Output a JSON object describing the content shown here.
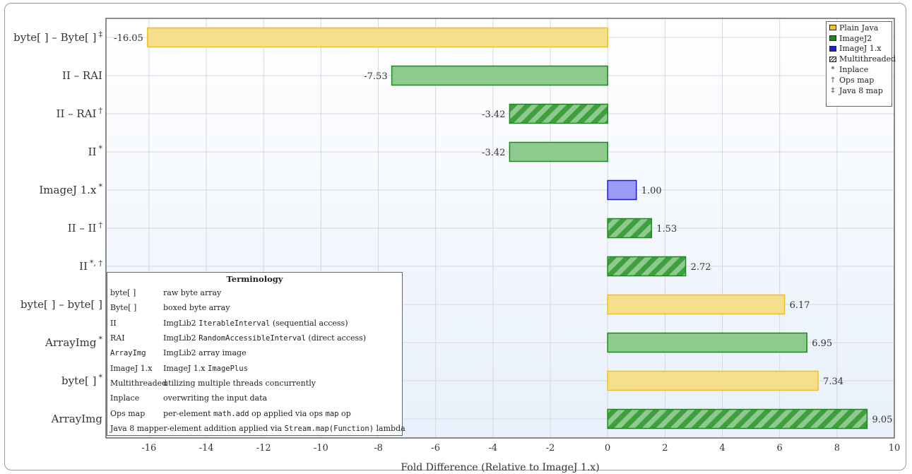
{
  "chart_data": {
    "type": "bar",
    "orientation": "horizontal",
    "xlabel": "Fold Difference (Relative to ImageJ 1.x)",
    "xlim": [
      -17.5,
      10
    ],
    "xticks": [
      -16,
      -14,
      -12,
      -10,
      -8,
      -6,
      -4,
      -2,
      0,
      2,
      4,
      6,
      8,
      10
    ],
    "grid": true,
    "legend_position": "top-right",
    "bars": [
      {
        "label": "byte[ ] – Byte[ ]",
        "sup": "‡",
        "value": -16.05,
        "value_label": "-16.05",
        "category": "Plain Java",
        "hatched": false
      },
      {
        "label": "II – RAI",
        "sup": "",
        "value": -7.53,
        "value_label": "-7.53",
        "category": "ImageJ2",
        "hatched": false
      },
      {
        "label": "II – RAI",
        "sup": "†",
        "value": -3.42,
        "value_label": "-3.42",
        "category": "ImageJ2",
        "hatched": true
      },
      {
        "label": "II",
        "sup": "*",
        "value": -3.42,
        "value_label": "-3.42",
        "category": "ImageJ2",
        "hatched": false
      },
      {
        "label": "ImageJ 1.x",
        "sup": "*",
        "value": 1.0,
        "value_label": "1.00",
        "category": "ImageJ 1.x",
        "hatched": false
      },
      {
        "label": "II – II",
        "sup": "†",
        "value": 1.53,
        "value_label": "1.53",
        "category": "ImageJ2",
        "hatched": true
      },
      {
        "label": "II",
        "sup": "*, †",
        "value": 2.72,
        "value_label": "2.72",
        "category": "ImageJ2",
        "hatched": true
      },
      {
        "label": "byte[ ] – byte[ ]",
        "sup": "",
        "value": 6.17,
        "value_label": "6.17",
        "category": "Plain Java",
        "hatched": false
      },
      {
        "label": "ArrayImg",
        "sup": "*",
        "value": 6.95,
        "value_label": "6.95",
        "category": "ImageJ2",
        "hatched": false
      },
      {
        "label": "byte[ ]",
        "sup": "*",
        "value": 7.34,
        "value_label": "7.34",
        "category": "Plain Java",
        "hatched": false
      },
      {
        "label": "ArrayImg",
        "sup": "",
        "value": 9.05,
        "value_label": "9.05",
        "category": "ImageJ2",
        "hatched": true
      }
    ],
    "colors": {
      "Plain Java": {
        "fill": "#f5de8c",
        "stroke": "#f0c020",
        "swatch": "#f2c318"
      },
      "ImageJ2": {
        "fill": "#8ec98e",
        "stroke": "#1a8a1a",
        "swatch": "#1e8b1e"
      },
      "ImageJ 1.x": {
        "fill": "#9b9bf7",
        "stroke": "#1a1ad6",
        "swatch": "#1e1ee0"
      }
    },
    "legend": {
      "swatches": [
        {
          "label": "Plain Java",
          "key": "Plain Java"
        },
        {
          "label": "ImageJ2",
          "key": "ImageJ2"
        },
        {
          "label": "ImageJ 1.x",
          "key": "ImageJ 1.x"
        },
        {
          "label": "Multithreaded",
          "key": "hatched"
        }
      ],
      "symbols": [
        {
          "symbol": "*",
          "label": "Inplace"
        },
        {
          "symbol": "†",
          "label": "Ops map"
        },
        {
          "symbol": "‡",
          "label": "Java 8 map"
        }
      ]
    }
  },
  "terminology": {
    "title": "Terminology",
    "rows": [
      {
        "term": "byte[ ]",
        "term_mono": false,
        "def": [
          {
            "t": "raw byte array",
            "m": false
          }
        ]
      },
      {
        "term": "Byte[ ]",
        "term_mono": false,
        "def": [
          {
            "t": "boxed byte array",
            "m": false
          }
        ]
      },
      {
        "term": "II",
        "term_mono": false,
        "def": [
          {
            "t": "ImgLib2 ",
            "m": false
          },
          {
            "t": "IterableInterval",
            "m": true
          },
          {
            "t": " (sequential access)",
            "m": false
          }
        ]
      },
      {
        "term": "RAI",
        "term_mono": false,
        "def": [
          {
            "t": "ImgLib2 ",
            "m": false
          },
          {
            "t": "RandomAccessibleInterval",
            "m": true
          },
          {
            "t": " (direct access)",
            "m": false
          }
        ]
      },
      {
        "term": "ArrayImg",
        "term_mono": true,
        "def": [
          {
            "t": "ImgLib2 array image",
            "m": false
          }
        ]
      },
      {
        "term": "ImageJ 1.x",
        "term_mono": false,
        "def": [
          {
            "t": "ImageJ 1.x ",
            "m": false
          },
          {
            "t": "ImagePlus",
            "m": true
          }
        ]
      },
      {
        "term": "Multithreaded",
        "term_mono": false,
        "def": [
          {
            "t": "utilizing multiple threads concurrently",
            "m": false
          }
        ]
      },
      {
        "term": "Inplace",
        "term_mono": false,
        "def": [
          {
            "t": "overwriting the input data",
            "m": false
          }
        ]
      },
      {
        "term": "Ops map",
        "term_mono": false,
        "def": [
          {
            "t": "per-element ",
            "m": false
          },
          {
            "t": "math.add",
            "m": true
          },
          {
            "t": " op applied via ops ",
            "m": false
          },
          {
            "t": "map",
            "m": true
          },
          {
            "t": " op",
            "m": false
          }
        ]
      },
      {
        "term": "Java 8 map",
        "term_mono": false,
        "def": [
          {
            "t": "per-element addition applied via ",
            "m": false
          },
          {
            "t": "Stream.map(Function)",
            "m": true
          },
          {
            "t": " lambda",
            "m": false
          }
        ]
      }
    ]
  }
}
